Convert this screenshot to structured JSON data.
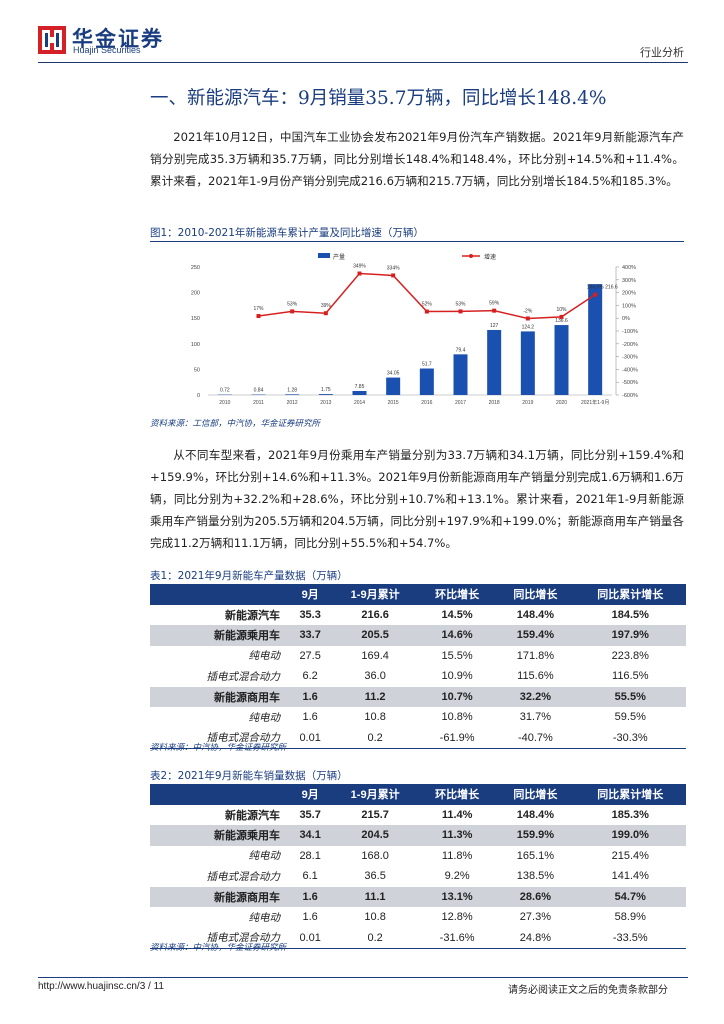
{
  "header": {
    "logo_cn": "华金证券",
    "logo_en": "Huajin Securities",
    "tag": "行业分析"
  },
  "section_title": "一、新能源汽车：9月销量35.7万辆，同比增长148.4%",
  "para1": "2021年10月12日，中国汽车工业协会发布2021年9月份汽车产销数据。2021年9月新能源汽车产销分别完成35.3万辆和35.7万辆，同比分别增长148.4%和148.4%，环比分别+14.5%和+11.4%。累计来看，2021年1-9月份产销分别完成216.6万辆和215.7万辆，同比分别增长184.5%和185.3%。",
  "figure_caption": "图1：2010-2021年新能源车累计产量及同比增速（万辆）",
  "figure_source": "资料来源：工信部，中汽协，华金证券研究所",
  "chart_data": {
    "type": "bar",
    "title": "",
    "legend": [
      "产量",
      "增速"
    ],
    "categories": [
      "2010",
      "2011",
      "2012",
      "2013",
      "2014",
      "2015",
      "2016",
      "2017",
      "2018",
      "2019",
      "2020",
      "2021年1-9月"
    ],
    "series": [
      {
        "name": "产量",
        "type": "bar",
        "values": [
          0.72,
          0.84,
          1.28,
          1.75,
          7.85,
          34.05,
          51.7,
          79.4,
          127,
          124.2,
          136.6,
          216.6
        ],
        "labels": [
          "0.72",
          "0.84",
          "1.28",
          "1.75",
          "7.85",
          "34.05",
          "51.7",
          "79.4",
          "127",
          "124.2",
          "136.6",
          ""
        ]
      },
      {
        "name": "增速",
        "type": "line",
        "values": [
          null,
          17,
          53,
          39,
          349,
          334,
          52,
          53,
          59,
          -2,
          10,
          184.5
        ],
        "labels": [
          "",
          "17%",
          "53%",
          "39%",
          "349%",
          "334%",
          "52%",
          "53%",
          "59%",
          "-2%",
          "10%",
          "184.5%"
        ]
      }
    ],
    "y_left_ticks": [
      "250",
      "200",
      "150",
      "100",
      "50",
      "0"
    ],
    "y_left_range": [
      0,
      250
    ],
    "y_right_ticks": [
      "400%",
      "300%",
      "200%",
      "100%",
      "0%",
      "-100%",
      "-200%",
      "-300%",
      "-400%",
      "-500%",
      "-600%"
    ],
    "y_right_range": [
      -600,
      400
    ],
    "last_bar_label": "216.6",
    "colors": {
      "bar": "#1a50b0",
      "line": "#d62020"
    }
  },
  "para2": "从不同车型来看，2021年9月份乘用车产销量分别为33.7万辆和34.1万辆，同比分别+159.4%和+159.9%，环比分别+14.6%和+11.3%。2021年9月份新能源商用车产销量分别完成1.6万辆和1.6万辆，同比分别为+32.2%和+28.6%，环比分别+10.7%和+13.1%。累计来看，2021年1-9月新能源乘用车产销量分别为205.5万辆和204.5万辆，同比分别+197.9%和+199.0%；新能源商用车产销量各完成11.2万辆和11.1万辆，同比分别+55.5%和+54.7%。",
  "table1": {
    "caption": "表1：2021年9月新能车产量数据（万辆）",
    "headers": [
      "",
      "9月",
      "1-9月累计",
      "环比增长",
      "同比增长",
      "同比累计增长"
    ],
    "rows": [
      {
        "cells": [
          "新能源汽车",
          "35.3",
          "216.6",
          "14.5%",
          "148.4%",
          "184.5%"
        ],
        "style": "bold"
      },
      {
        "cells": [
          "新能源乘用车",
          "33.7",
          "205.5",
          "14.6%",
          "159.4%",
          "197.9%"
        ],
        "style": "bold grey"
      },
      {
        "cells": [
          "纯电动",
          "27.5",
          "169.4",
          "15.5%",
          "171.8%",
          "223.8%"
        ],
        "style": "sub"
      },
      {
        "cells": [
          "插电式混合动力",
          "6.2",
          "36.0",
          "10.9%",
          "115.6%",
          "116.5%"
        ],
        "style": "sub"
      },
      {
        "cells": [
          "新能源商用车",
          "1.6",
          "11.2",
          "10.7%",
          "32.2%",
          "55.5%"
        ],
        "style": "bold grey"
      },
      {
        "cells": [
          "纯电动",
          "1.6",
          "10.8",
          "10.8%",
          "31.7%",
          "59.5%"
        ],
        "style": "sub"
      },
      {
        "cells": [
          "插电式混合动力",
          "0.01",
          "0.2",
          "-61.9%",
          "-40.7%",
          "-30.3%"
        ],
        "style": "sub"
      }
    ],
    "source": "资料来源：中汽协，华金证券研究所"
  },
  "table2": {
    "caption": "表2：2021年9月新能车销量数据（万辆）",
    "headers": [
      "",
      "9月",
      "1-9月累计",
      "环比增长",
      "同比增长",
      "同比累计增长"
    ],
    "rows": [
      {
        "cells": [
          "新能源汽车",
          "35.7",
          "215.7",
          "11.4%",
          "148.4%",
          "185.3%"
        ],
        "style": "bold"
      },
      {
        "cells": [
          "新能源乘用车",
          "34.1",
          "204.5",
          "11.3%",
          "159.9%",
          "199.0%"
        ],
        "style": "bold grey"
      },
      {
        "cells": [
          "纯电动",
          "28.1",
          "168.0",
          "11.8%",
          "165.1%",
          "215.4%"
        ],
        "style": "sub"
      },
      {
        "cells": [
          "插电式混合动力",
          "6.1",
          "36.5",
          "9.2%",
          "138.5%",
          "141.4%"
        ],
        "style": "sub"
      },
      {
        "cells": [
          "新能源商用车",
          "1.6",
          "11.1",
          "13.1%",
          "28.6%",
          "54.7%"
        ],
        "style": "bold grey"
      },
      {
        "cells": [
          "纯电动",
          "1.6",
          "10.8",
          "12.8%",
          "27.3%",
          "58.9%"
        ],
        "style": "sub"
      },
      {
        "cells": [
          "插电式混合动力",
          "0.01",
          "0.2",
          "-31.6%",
          "24.8%",
          "-33.5%"
        ],
        "style": "sub"
      }
    ],
    "source": "资料来源：中汽协，华金证券研究所"
  },
  "footer": {
    "url": "http://www.huajinsc.cn/3 / 11",
    "disclaimer": "请务必阅读正文之后的免责条款部分"
  }
}
